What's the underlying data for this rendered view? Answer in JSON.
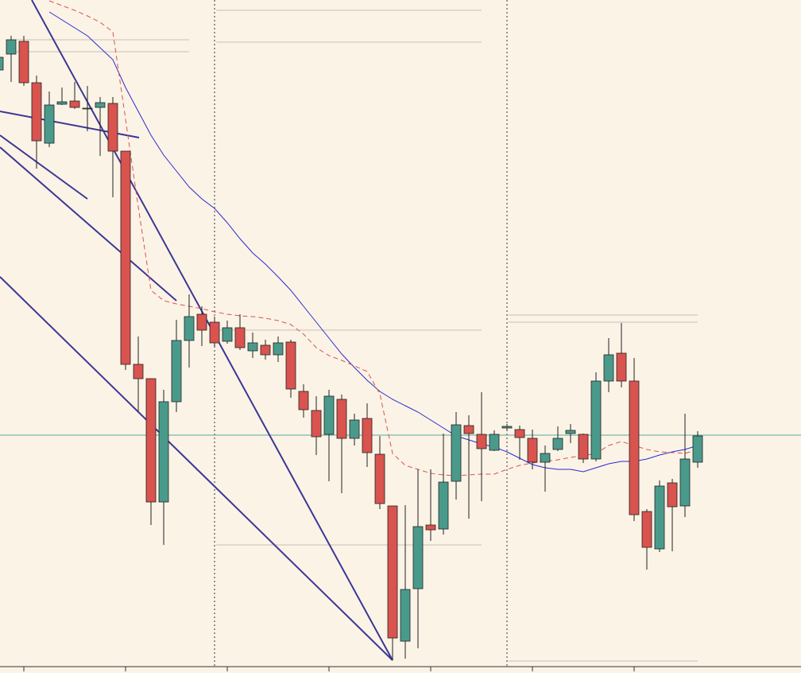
{
  "chart_data": {
    "type": "candlestick",
    "up_color": "#4a9a8c",
    "down_color": "#d9534f",
    "wick_color": "#222222",
    "ylim": [
      54,
      900
    ],
    "open": [
      812,
      832,
      848,
      796,
      720,
      769,
      773,
      764,
      765,
      770,
      710,
      442,
      424,
      269,
      395,
      472,
      505,
      495,
      471,
      488,
      459,
      466,
      454,
      470,
      408,
      384,
      354,
      398,
      349,
      374,
      329,
      264,
      94,
      160,
      240,
      235,
      295,
      365,
      354,
      334,
      362,
      360,
      349,
      319,
      335,
      355,
      354,
      323,
      421,
      456,
      421,
      257,
      210,
      293,
      264,
      319
    ],
    "close": [
      828,
      850,
      796,
      723,
      768,
      772,
      765,
      764,
      771,
      710,
      442,
      424,
      269,
      395,
      472,
      502,
      485,
      469,
      488,
      463,
      469,
      454,
      469,
      411,
      385,
      351,
      402,
      349,
      372,
      331,
      267,
      98,
      159,
      238,
      234,
      294,
      366,
      355,
      336,
      354,
      364,
      350,
      319,
      330,
      349,
      359,
      323,
      421,
      454,
      421,
      253,
      212,
      289,
      263,
      323,
      352
    ],
    "high": [
      835,
      855,
      855,
      805,
      785,
      790,
      797,
      792,
      778,
      778,
      710,
      477,
      424,
      410,
      498,
      530,
      515,
      502,
      497,
      505,
      482,
      473,
      477,
      473,
      417,
      402,
      410,
      404,
      380,
      393,
      352,
      264,
      265,
      310,
      310,
      355,
      382,
      378,
      407,
      359,
      367,
      365,
      360,
      340,
      364,
      367,
      355,
      432,
      475,
      494,
      450,
      260,
      296,
      298,
      380,
      358
    ],
    "low": [
      808,
      797,
      792,
      688,
      715,
      768,
      763,
      735,
      704,
      652,
      435,
      383,
      240,
      215,
      382,
      438,
      465,
      464,
      468,
      460,
      450,
      448,
      445,
      400,
      375,
      328,
      295,
      280,
      340,
      313,
      260,
      70,
      72,
      85,
      220,
      228,
      272,
      248,
      270,
      333,
      358,
      322,
      310,
      282,
      333,
      343,
      318,
      320,
      407,
      413,
      245,
      184,
      206,
      207,
      250,
      312
    ],
    "overlays": [
      {
        "color": "#2b2bd0",
        "style": "solid",
        "values": [
          null,
          null,
          null,
          null,
          885,
          875,
          865,
          855,
          840,
          825,
          790,
          760,
          730,
          705,
          685,
          665,
          650,
          638,
          620,
          600,
          582,
          568,
          552,
          535,
          515,
          495,
          475,
          455,
          438,
          422,
          408,
          398,
          390,
          382,
          372,
          362,
          352,
          347,
          342,
          338,
          332,
          324,
          316,
          312,
          310,
          310,
          307,
          312,
          317,
          320,
          320,
          323,
          328,
          332,
          335,
          340
        ]
      },
      {
        "color": "#d9534f",
        "style": "dashed",
        "values": [
          null,
          null,
          null,
          null,
          899,
          893,
          887,
          880,
          872,
          860,
          750,
          640,
          535,
          522,
          518,
          515,
          512,
          508,
          505,
          503,
          502,
          500,
          497,
          492,
          480,
          463,
          453,
          447,
          440,
          433,
          405,
          330,
          315,
          310,
          305,
          303,
          302,
          303,
          304,
          304,
          310,
          315,
          318,
          320,
          322,
          325,
          327,
          330,
          340,
          345,
          340,
          335,
          332,
          331,
          330,
          335
        ]
      }
    ]
  }
}
